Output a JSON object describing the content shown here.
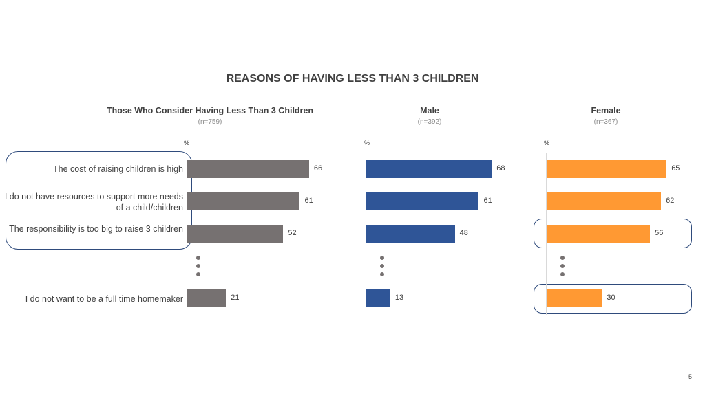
{
  "title": "REASONS OF HAVING LESS THAN 3 CHILDREN",
  "page_number": "5",
  "chart_data": [
    {
      "type": "bar",
      "orientation": "horizontal",
      "title": "Those Who Consider Having Less Than 3 Children",
      "subtitle": "(n=759)",
      "unit_label": "%",
      "color": "#767171",
      "categories": [
        "The cost of raising children is high",
        "I do not have resources to support more needs of a child/children",
        "The responsibility is too big to raise 3 children",
        "......",
        "I do not want to be a full time homemaker"
      ],
      "values": [
        66,
        61,
        52,
        null,
        21
      ],
      "value_labels": [
        "66",
        "61",
        "52",
        "",
        "21"
      ]
    },
    {
      "type": "bar",
      "orientation": "horizontal",
      "title": "Male",
      "subtitle": "(n=392)",
      "unit_label": "%",
      "color": "#2f5597",
      "values": [
        68,
        61,
        48,
        null,
        13
      ],
      "value_labels": [
        "68",
        "61",
        "48",
        "",
        "13"
      ]
    },
    {
      "type": "bar",
      "orientation": "horizontal",
      "title": "Female",
      "subtitle": "(n=367)",
      "unit_label": "%",
      "color": "#ff9933",
      "values": [
        65,
        62,
        56,
        null,
        30
      ],
      "value_labels": [
        "65",
        "62",
        "56",
        "",
        "30"
      ],
      "highlighted_rows": [
        2,
        4
      ]
    }
  ],
  "highlight_color": "#2f4b7c"
}
